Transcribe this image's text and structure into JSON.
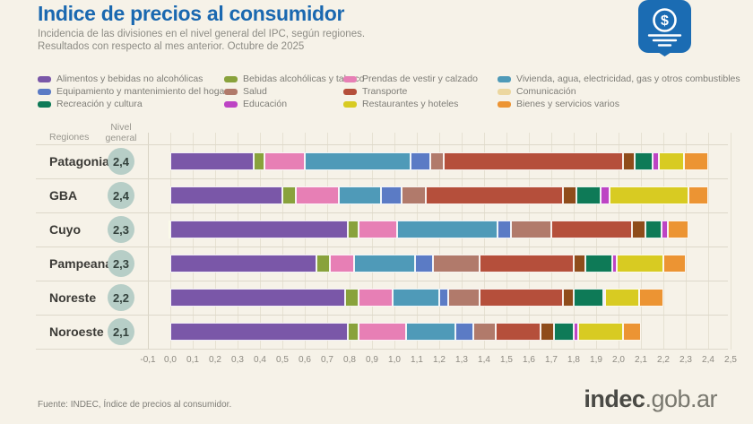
{
  "header": {
    "title": "Indice de precios al consumidor",
    "subtitle_line1": "Incidencia de las divisiones en el nivel general del IPC, según regiones.",
    "subtitle_line2": "Resultados con respecto al mes anterior. Octubre de 2025"
  },
  "logo": {
    "badge_color": "#1b6cb3",
    "symbol": "$"
  },
  "table_headers": {
    "regions": "Regiones",
    "level_line1": "Nivel",
    "level_line2": "general"
  },
  "footer": {
    "source": "Fuente: INDEC, Índice de precios al consumidor.",
    "brand_bold": "indec",
    "brand_rest": ".gob.ar"
  },
  "chart_data": {
    "type": "bar",
    "orientation": "horizontal",
    "stacked": true,
    "grid": true,
    "xlim": [
      -0.1,
      2.5
    ],
    "tick_step": 0.1,
    "x_ticks": [
      "-0,1",
      "0,0",
      "0,1",
      "0,2",
      "0,3",
      "0,4",
      "0,5",
      "0,6",
      "0,7",
      "0,8",
      "0,9",
      "1,0",
      "1,1",
      "1,2",
      "1,3",
      "1,4",
      "1,5",
      "1,6",
      "1,7",
      "1,8",
      "1,9",
      "2,0",
      "2,1",
      "2,2",
      "2,3",
      "2,4",
      "2,5"
    ],
    "divisions": [
      {
        "name": "Alimentos y bebidas no alcohólicas",
        "legend_color": "#7a57a8",
        "bar_color": "#7a57a8"
      },
      {
        "name": "Bebidas alcohólicas y tabaco",
        "legend_color": "#89a23c",
        "bar_color": "#89a23c"
      },
      {
        "name": "Prendas de vestir y calzado",
        "legend_color": "#e77fb5",
        "bar_color": "#e77fb5"
      },
      {
        "name": "Vivienda, agua, electricidad, gas y otros combustibles",
        "legend_color": "#4f9ab8",
        "bar_color": "#4f9ab8"
      },
      {
        "name": "Equipamiento y mantenimiento del hogar",
        "legend_color": "#5b7bc5",
        "bar_color": "#5b7bc5"
      },
      {
        "name": "Salud",
        "legend_color": "#b17a6b",
        "bar_color": "#b17a6b"
      },
      {
        "name": "Transporte",
        "legend_color": "#b54f3b",
        "bar_color": "#b54f3b"
      },
      {
        "name": "Comunicación",
        "legend_color": "#ecd79f",
        "bar_color": "#8f4c1b"
      },
      {
        "name": "Recreación y cultura",
        "legend_color": "#0e7a57",
        "bar_color": "#0e7a57"
      },
      {
        "name": "Educación",
        "legend_color": "#bd44c4",
        "bar_color": "#bd44c4"
      },
      {
        "name": "Restaurantes y hoteles",
        "legend_color": "#d8cb22",
        "bar_color": "#d8cb22"
      },
      {
        "name": "Bienes y servicios varios",
        "legend_color": "#ec9433",
        "bar_color": "#ec9433"
      }
    ],
    "regions": [
      {
        "name": "Patagonia",
        "level_label": "2,4",
        "level": 2.4,
        "values": [
          0.37,
          0.05,
          0.18,
          0.47,
          0.09,
          0.06,
          0.8,
          0.05,
          0.08,
          0.03,
          0.11,
          0.11
        ]
      },
      {
        "name": "GBA",
        "level_label": "2,4",
        "level": 2.4,
        "values": [
          0.5,
          0.06,
          0.19,
          0.19,
          0.09,
          0.11,
          0.61,
          0.06,
          0.11,
          0.04,
          0.35,
          0.09
        ]
      },
      {
        "name": "Cuyo",
        "level_label": "2,3",
        "level": 2.3,
        "values": [
          0.79,
          0.05,
          0.17,
          0.45,
          0.06,
          0.18,
          0.36,
          0.06,
          0.07,
          0.03,
          -0.01,
          0.09
        ]
      },
      {
        "name": "Pampeana",
        "level_label": "2,3",
        "level": 2.3,
        "values": [
          0.65,
          0.06,
          0.11,
          0.27,
          0.08,
          0.21,
          0.42,
          0.05,
          0.12,
          0.02,
          0.21,
          0.1
        ]
      },
      {
        "name": "Noreste",
        "level_label": "2,2",
        "level": 2.2,
        "values": [
          0.78,
          0.06,
          0.15,
          0.21,
          0.04,
          0.14,
          0.37,
          0.05,
          0.13,
          0.01,
          0.15,
          0.11
        ]
      },
      {
        "name": "Noroeste",
        "level_label": "2,1",
        "level": 2.1,
        "values": [
          0.79,
          0.05,
          0.21,
          0.22,
          0.08,
          0.1,
          0.2,
          0.06,
          0.09,
          0.02,
          0.2,
          0.08
        ]
      }
    ]
  }
}
